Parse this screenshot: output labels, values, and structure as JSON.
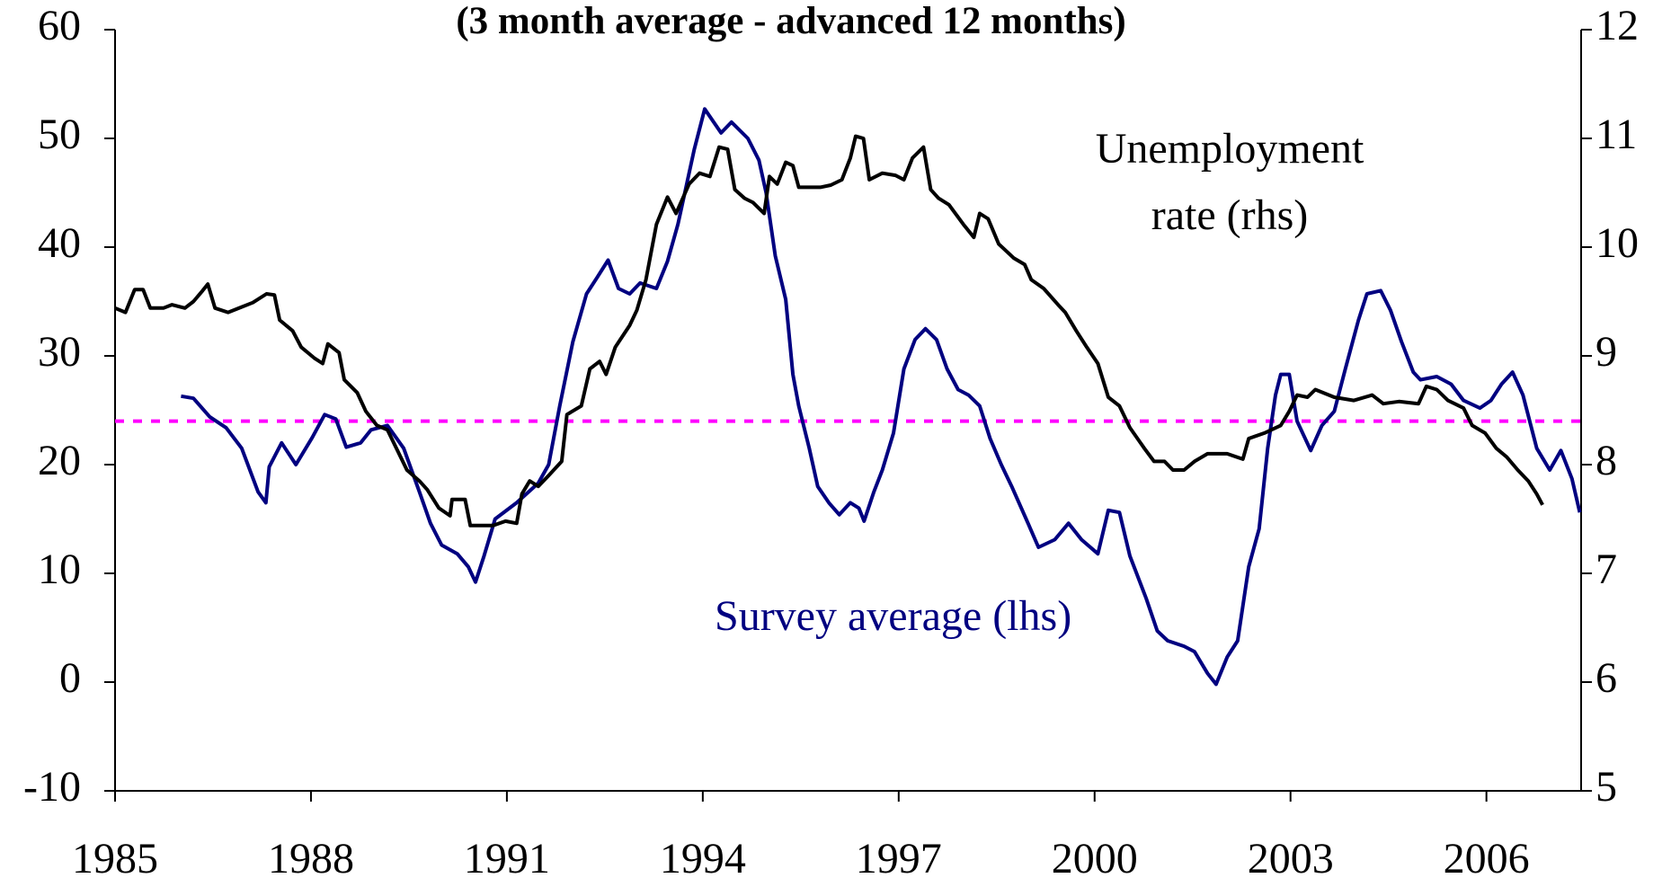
{
  "chart_data": {
    "type": "line",
    "title": "(3 month average - advanced 12 months)",
    "xlim": [
      1985,
      2007.45
    ],
    "xticks": [
      1985,
      1988,
      1991,
      1994,
      1997,
      2000,
      2003,
      2006
    ],
    "ylim": [
      -10,
      60
    ],
    "yticks": [
      -10,
      0,
      10,
      20,
      30,
      40,
      50,
      60
    ],
    "y2lim": [
      5,
      12
    ],
    "y2ticks": [
      5,
      6,
      7,
      8,
      9,
      10,
      11,
      12
    ],
    "hline": {
      "value": 24,
      "color": "#ff00ff"
    },
    "annotations": [
      {
        "lines": [
          "Unemployment",
          "rate (rhs)"
        ],
        "color": "#000000"
      },
      {
        "lines": [
          "Survey average (lhs)"
        ],
        "color": "#000080"
      }
    ],
    "series": [
      {
        "name": "Survey average (lhs)",
        "color": "#000080",
        "axis": "y",
        "x": [
          1986.01,
          1986.2,
          1986.45,
          1986.7,
          1986.94,
          1987.19,
          1987.31,
          1987.36,
          1987.55,
          1987.77,
          1988.02,
          1988.21,
          1988.38,
          1988.54,
          1988.76,
          1988.92,
          1989.17,
          1989.42,
          1989.66,
          1989.83,
          1990.0,
          1990.24,
          1990.41,
          1990.52,
          1990.65,
          1990.82,
          1991.15,
          1991.48,
          1991.64,
          1991.81,
          1992.01,
          1992.22,
          1992.38,
          1992.55,
          1992.71,
          1992.88,
          1993.04,
          1993.29,
          1993.46,
          1993.62,
          1993.87,
          1994.03,
          1994.28,
          1994.44,
          1994.69,
          1994.86,
          1994.97,
          1995.11,
          1995.27,
          1995.38,
          1995.47,
          1995.63,
          1995.76,
          1995.93,
          1996.09,
          1996.26,
          1996.39,
          1996.47,
          1996.62,
          1996.75,
          1996.92,
          1997.08,
          1997.25,
          1997.41,
          1997.58,
          1997.74,
          1997.91,
          1998.07,
          1998.24,
          1998.4,
          1998.57,
          1998.73,
          1998.98,
          1999.14,
          1999.39,
          1999.6,
          1999.8,
          2000.05,
          2000.21,
          2000.38,
          2000.54,
          2000.79,
          2000.96,
          2001.12,
          2001.37,
          2001.53,
          2001.73,
          2001.86,
          2002.03,
          2002.19,
          2002.36,
          2002.52,
          2002.65,
          2002.77,
          2002.85,
          2002.98,
          2003.1,
          2003.31,
          2003.48,
          2003.67,
          2003.84,
          2004.04,
          2004.17,
          2004.38,
          2004.53,
          2004.7,
          2004.88,
          2004.99,
          2005.24,
          2005.46,
          2005.65,
          2005.9,
          2006.07,
          2006.23,
          2006.4,
          2006.56,
          2006.77,
          2006.97,
          2007.14,
          2007.31,
          2007.43
        ],
        "values": [
          26.3,
          26.1,
          24.4,
          23.4,
          21.5,
          17.5,
          16.5,
          19.8,
          22,
          20,
          22.5,
          24.6,
          24.2,
          21.6,
          22,
          23.2,
          23.6,
          21.5,
          17.5,
          14.6,
          12.6,
          11.8,
          10.6,
          9.2,
          11.6,
          15,
          16.5,
          18.3,
          20,
          25.4,
          31.3,
          35.7,
          37.2,
          38.8,
          36.2,
          35.7,
          36.7,
          36.2,
          38.7,
          42.1,
          49,
          52.7,
          50.5,
          51.5,
          50,
          48,
          45,
          39.2,
          35.2,
          28.3,
          25.4,
          21.5,
          18,
          16.5,
          15.4,
          16.5,
          16,
          14.8,
          17.5,
          19.5,
          22.9,
          28.8,
          31.5,
          32.5,
          31.5,
          28.8,
          26.9,
          26.4,
          25.4,
          22.4,
          20,
          18,
          14.6,
          12.4,
          13.1,
          14.6,
          13.1,
          11.8,
          15.8,
          15.6,
          11.6,
          7.7,
          4.7,
          3.8,
          3.3,
          2.8,
          0.8,
          -0.2,
          2.3,
          3.8,
          10.6,
          14.1,
          21.5,
          26.4,
          28.3,
          28.3,
          24,
          21.3,
          23.6,
          24.9,
          28.8,
          33.3,
          35.7,
          36,
          34.2,
          31.3,
          28.5,
          27.8,
          28.1,
          27.4,
          25.9,
          25.2,
          25.9,
          27.4,
          28.5,
          26.4,
          21.5,
          19.5,
          21.3,
          18.7,
          15.6
        ]
      },
      {
        "name": "Unemployment rate (rhs)",
        "color": "#000000",
        "axis": "y2",
        "x": [
          1985.0,
          1985.16,
          1985.3,
          1985.43,
          1985.54,
          1985.74,
          1985.87,
          1986.07,
          1986.2,
          1986.34,
          1986.42,
          1986.53,
          1986.73,
          1986.9,
          1987.11,
          1987.32,
          1987.44,
          1987.52,
          1987.72,
          1987.85,
          1988.05,
          1988.18,
          1988.26,
          1988.43,
          1988.51,
          1988.71,
          1988.84,
          1989.01,
          1989.17,
          1989.3,
          1989.47,
          1989.66,
          1989.78,
          1989.96,
          1990.13,
          1990.16,
          1990.36,
          1990.44,
          1990.79,
          1990.98,
          1991.15,
          1991.23,
          1991.35,
          1991.48,
          1991.64,
          1991.84,
          1991.92,
          1992.14,
          1992.27,
          1992.42,
          1992.52,
          1992.66,
          1992.88,
          1992.99,
          1993.13,
          1993.29,
          1993.46,
          1993.59,
          1993.79,
          1993.95,
          1994.11,
          1994.25,
          1994.38,
          1994.49,
          1994.64,
          1994.77,
          1994.94,
          1995.02,
          1995.14,
          1995.27,
          1995.38,
          1995.47,
          1995.63,
          1995.8,
          1995.96,
          1996.13,
          1996.26,
          1996.34,
          1996.46,
          1996.55,
          1996.75,
          1996.95,
          1997.08,
          1997.21,
          1997.38,
          1997.49,
          1997.61,
          1997.77,
          1997.99,
          1998.15,
          1998.24,
          1998.37,
          1998.53,
          1998.76,
          1998.93,
          1999.03,
          1999.22,
          1999.44,
          1999.55,
          1999.72,
          1999.88,
          2000.05,
          2000.21,
          2000.38,
          2000.54,
          2000.76,
          2000.91,
          2001.07,
          2001.2,
          2001.37,
          2001.53,
          2001.73,
          2002.03,
          2002.27,
          2002.36,
          2002.6,
          2002.85,
          2002.98,
          2003.1,
          2003.26,
          2003.38,
          2003.67,
          2003.97,
          2004.25,
          2004.42,
          2004.66,
          2004.96,
          2005.08,
          2005.24,
          2005.41,
          2005.65,
          2005.78,
          2005.98,
          2006.15,
          2006.31,
          2006.48,
          2006.64,
          2006.77,
          2006.86
        ],
        "values": [
          9.44,
          9.4,
          9.61,
          9.61,
          9.44,
          9.44,
          9.47,
          9.44,
          9.5,
          9.6,
          9.66,
          9.44,
          9.4,
          9.44,
          9.49,
          9.57,
          9.56,
          9.33,
          9.23,
          9.08,
          8.98,
          8.93,
          9.11,
          9.03,
          8.78,
          8.66,
          8.49,
          8.36,
          8.32,
          8.16,
          7.95,
          7.85,
          7.77,
          7.6,
          7.53,
          7.68,
          7.68,
          7.44,
          7.44,
          7.48,
          7.46,
          7.73,
          7.85,
          7.8,
          7.9,
          8.03,
          8.46,
          8.54,
          8.88,
          8.95,
          8.83,
          9.08,
          9.28,
          9.42,
          9.7,
          10.21,
          10.46,
          10.31,
          10.58,
          10.68,
          10.65,
          10.92,
          10.9,
          10.53,
          10.45,
          10.41,
          10.31,
          10.65,
          10.58,
          10.78,
          10.75,
          10.55,
          10.55,
          10.55,
          10.57,
          10.62,
          10.82,
          11.02,
          11.0,
          10.62,
          10.68,
          10.66,
          10.62,
          10.82,
          10.92,
          10.53,
          10.45,
          10.39,
          10.21,
          10.09,
          10.31,
          10.26,
          10.03,
          9.9,
          9.84,
          9.7,
          9.62,
          9.47,
          9.4,
          9.23,
          9.08,
          8.93,
          8.62,
          8.54,
          8.34,
          8.15,
          8.03,
          8.03,
          7.95,
          7.95,
          8.03,
          8.1,
          8.1,
          8.05,
          8.24,
          8.29,
          8.36,
          8.49,
          8.64,
          8.62,
          8.69,
          8.62,
          8.59,
          8.64,
          8.56,
          8.58,
          8.56,
          8.72,
          8.69,
          8.59,
          8.52,
          8.36,
          8.29,
          8.15,
          8.07,
          7.95,
          7.85,
          7.73,
          7.63
        ]
      }
    ]
  }
}
